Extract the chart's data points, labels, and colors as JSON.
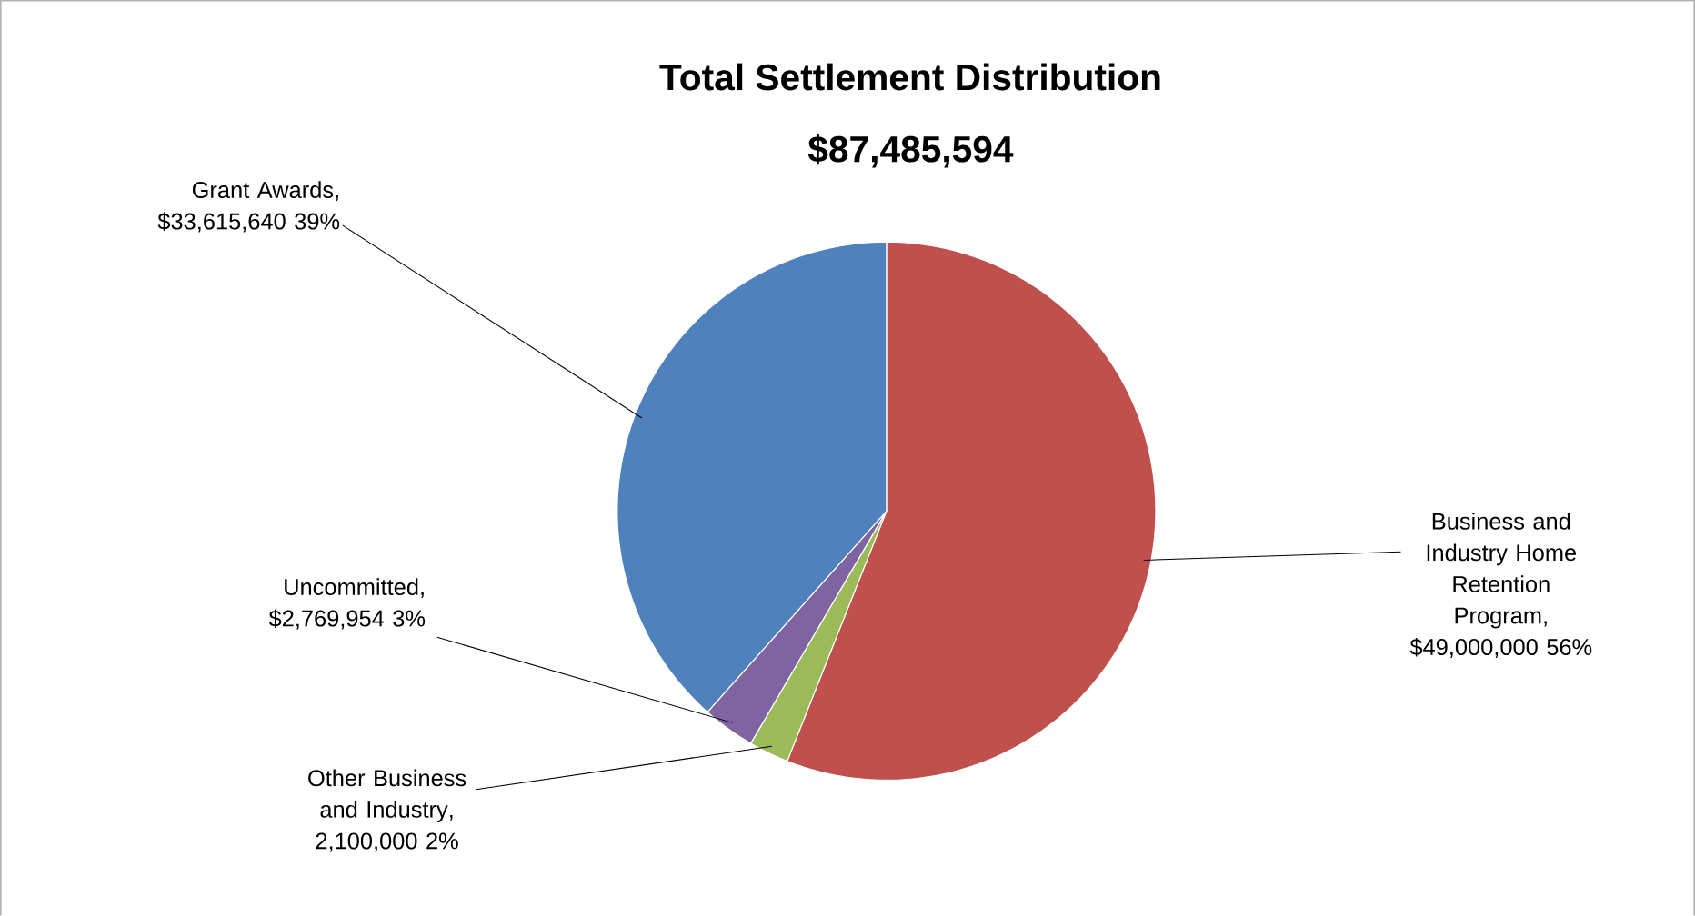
{
  "chart_data": {
    "type": "pie",
    "title": "Total Settlement Distribution",
    "subtitle": "$87,485,594",
    "categories": [
      "Business and Industry Home Retention Program",
      "Other Business and  Industry",
      "Uncommitted",
      "Grant Awards"
    ],
    "values": [
      49000000,
      2100000,
      2769954,
      33615640
    ],
    "value_labels": [
      ", $49,000,000  56%",
      ", 2,100,000 2%",
      ", $2,769,954  3%",
      ", $33,615,640  39%"
    ],
    "colors": [
      "#c0504d",
      "#9bbb59",
      "#8064a2",
      "#4f81bd"
    ]
  }
}
